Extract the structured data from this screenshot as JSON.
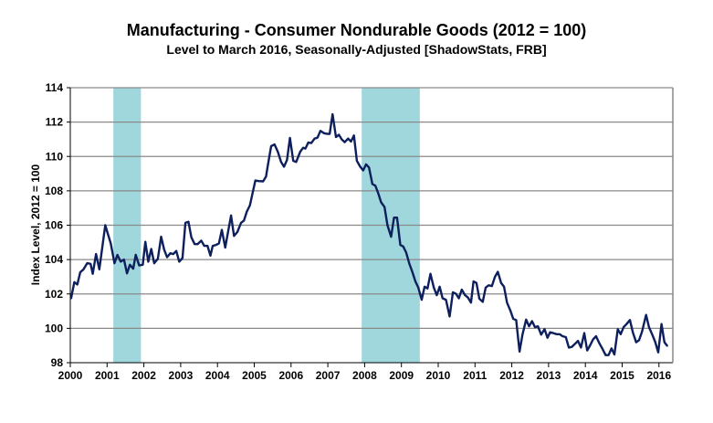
{
  "chart_data": {
    "type": "line",
    "title": "Manufacturing - Consumer Nondurable Goods (2012 = 100)",
    "subtitle": "Level to March 2016, Seasonally-Adjusted [ShadowStats, FRB]",
    "xlabel": "",
    "ylabel": "Index Level, 2012 = 100",
    "xlim": [
      2000,
      2016.38
    ],
    "ylim": [
      98,
      114
    ],
    "x_ticks": [
      "2000",
      "2001",
      "2002",
      "2003",
      "2004",
      "2005",
      "2006",
      "2007",
      "2008",
      "2009",
      "2010",
      "2011",
      "2012",
      "2013",
      "2014",
      "2015",
      "2016"
    ],
    "y_ticks": [
      "98",
      "100",
      "102",
      "104",
      "106",
      "108",
      "110",
      "112",
      "114"
    ],
    "grid": true,
    "legend": "none",
    "colors": {
      "line": "#0d1f5c",
      "recession": "#9fd7dc",
      "grid": "#8a8a8a"
    },
    "recessions": [
      [
        2001.17,
        2001.92
      ],
      [
        2007.92,
        2009.5
      ]
    ],
    "series": [
      {
        "name": "Consumer Nondurable Goods",
        "points": [
          [
            2000.02,
            101.72
          ],
          [
            2000.11,
            102.69
          ],
          [
            2000.19,
            102.55
          ],
          [
            2000.27,
            103.26
          ],
          [
            2000.36,
            103.43
          ],
          [
            2000.46,
            103.79
          ],
          [
            2000.55,
            103.75
          ],
          [
            2000.61,
            103.17
          ],
          [
            2000.7,
            104.32
          ],
          [
            2000.79,
            103.43
          ],
          [
            2000.95,
            106.0
          ],
          [
            2001.1,
            104.94
          ],
          [
            2001.2,
            103.79
          ],
          [
            2001.28,
            104.27
          ],
          [
            2001.37,
            103.88
          ],
          [
            2001.46,
            104.0
          ],
          [
            2001.54,
            103.2
          ],
          [
            2001.62,
            103.7
          ],
          [
            2001.71,
            103.47
          ],
          [
            2001.78,
            104.28
          ],
          [
            2001.87,
            103.66
          ],
          [
            2001.97,
            103.7
          ],
          [
            2002.04,
            105.03
          ],
          [
            2002.12,
            103.88
          ],
          [
            2002.2,
            104.62
          ],
          [
            2002.28,
            103.79
          ],
          [
            2002.38,
            104.05
          ],
          [
            2002.47,
            105.33
          ],
          [
            2002.55,
            104.58
          ],
          [
            2002.63,
            104.14
          ],
          [
            2002.72,
            104.37
          ],
          [
            2002.8,
            104.32
          ],
          [
            2002.88,
            104.5
          ],
          [
            2002.96,
            103.88
          ],
          [
            2003.05,
            104.09
          ],
          [
            2003.13,
            106.14
          ],
          [
            2003.21,
            106.2
          ],
          [
            2003.29,
            105.3
          ],
          [
            2003.38,
            104.9
          ],
          [
            2003.46,
            104.9
          ],
          [
            2003.56,
            105.1
          ],
          [
            2003.64,
            104.8
          ],
          [
            2003.73,
            104.8
          ],
          [
            2003.81,
            104.23
          ],
          [
            2003.87,
            104.8
          ],
          [
            2003.96,
            104.85
          ],
          [
            2004.04,
            104.94
          ],
          [
            2004.12,
            105.73
          ],
          [
            2004.21,
            104.7
          ],
          [
            2004.29,
            105.64
          ],
          [
            2004.37,
            106.57
          ],
          [
            2004.45,
            105.38
          ],
          [
            2004.54,
            105.6
          ],
          [
            2004.64,
            106.14
          ],
          [
            2004.72,
            106.27
          ],
          [
            2004.8,
            106.8
          ],
          [
            2004.88,
            107.15
          ],
          [
            2005.03,
            108.6
          ],
          [
            2005.12,
            108.57
          ],
          [
            2005.24,
            108.55
          ],
          [
            2005.32,
            108.83
          ],
          [
            2005.36,
            109.36
          ],
          [
            2005.46,
            110.6
          ],
          [
            2005.55,
            110.7
          ],
          [
            2005.64,
            110.28
          ],
          [
            2005.73,
            109.68
          ],
          [
            2005.81,
            109.4
          ],
          [
            2005.89,
            109.8
          ],
          [
            2005.97,
            111.08
          ],
          [
            2006.06,
            109.75
          ],
          [
            2006.14,
            109.68
          ],
          [
            2006.25,
            110.28
          ],
          [
            2006.33,
            110.51
          ],
          [
            2006.39,
            110.46
          ],
          [
            2006.47,
            110.81
          ],
          [
            2006.55,
            110.78
          ],
          [
            2006.64,
            111.04
          ],
          [
            2006.72,
            111.1
          ],
          [
            2006.8,
            111.49
          ],
          [
            2006.9,
            111.35
          ],
          [
            2007.0,
            111.31
          ],
          [
            2007.05,
            111.31
          ],
          [
            2007.13,
            112.46
          ],
          [
            2007.22,
            111.13
          ],
          [
            2007.3,
            111.26
          ],
          [
            2007.38,
            110.99
          ],
          [
            2007.46,
            110.83
          ],
          [
            2007.55,
            111.04
          ],
          [
            2007.63,
            110.87
          ],
          [
            2007.71,
            111.22
          ],
          [
            2007.79,
            109.75
          ],
          [
            2007.88,
            109.4
          ],
          [
            2007.96,
            109.19
          ],
          [
            2008.04,
            109.54
          ],
          [
            2008.12,
            109.36
          ],
          [
            2008.21,
            108.39
          ],
          [
            2008.29,
            108.3
          ],
          [
            2008.37,
            107.86
          ],
          [
            2008.45,
            107.33
          ],
          [
            2008.54,
            107.06
          ],
          [
            2008.62,
            106.0
          ],
          [
            2008.72,
            105.33
          ],
          [
            2008.8,
            106.44
          ],
          [
            2008.88,
            106.44
          ],
          [
            2008.97,
            104.85
          ],
          [
            2009.05,
            104.76
          ],
          [
            2009.13,
            104.41
          ],
          [
            2009.21,
            103.79
          ],
          [
            2009.3,
            103.26
          ],
          [
            2009.38,
            102.73
          ],
          [
            2009.46,
            102.37
          ],
          [
            2009.55,
            101.66
          ],
          [
            2009.63,
            102.42
          ],
          [
            2009.71,
            102.32
          ],
          [
            2009.79,
            103.17
          ],
          [
            2009.88,
            102.37
          ],
          [
            2009.96,
            101.93
          ],
          [
            2010.04,
            102.42
          ],
          [
            2010.12,
            101.75
          ],
          [
            2010.21,
            101.66
          ],
          [
            2010.31,
            100.69
          ],
          [
            2010.4,
            102.1
          ],
          [
            2010.48,
            102.02
          ],
          [
            2010.56,
            101.75
          ],
          [
            2010.64,
            102.25
          ],
          [
            2010.73,
            101.93
          ],
          [
            2010.81,
            101.79
          ],
          [
            2010.89,
            101.5
          ],
          [
            2010.96,
            102.73
          ],
          [
            2011.04,
            102.64
          ],
          [
            2011.12,
            101.72
          ],
          [
            2011.21,
            101.54
          ],
          [
            2011.29,
            102.37
          ],
          [
            2011.37,
            102.5
          ],
          [
            2011.46,
            102.46
          ],
          [
            2011.54,
            102.99
          ],
          [
            2011.62,
            103.29
          ],
          [
            2011.71,
            102.64
          ],
          [
            2011.79,
            102.42
          ],
          [
            2011.87,
            101.49
          ],
          [
            2011.96,
            101.04
          ],
          [
            2012.04,
            100.55
          ],
          [
            2012.12,
            100.48
          ],
          [
            2012.21,
            98.65
          ],
          [
            2012.29,
            99.63
          ],
          [
            2012.39,
            100.51
          ],
          [
            2012.47,
            100.12
          ],
          [
            2012.55,
            100.42
          ],
          [
            2012.63,
            100.07
          ],
          [
            2012.71,
            100.12
          ],
          [
            2012.8,
            99.63
          ],
          [
            2012.89,
            99.95
          ],
          [
            2012.97,
            99.45
          ],
          [
            2013.04,
            99.77
          ],
          [
            2013.13,
            99.72
          ],
          [
            2013.22,
            99.66
          ],
          [
            2013.3,
            99.66
          ],
          [
            2013.38,
            99.54
          ],
          [
            2013.47,
            99.49
          ],
          [
            2013.55,
            98.88
          ],
          [
            2013.63,
            98.92
          ],
          [
            2013.72,
            99.1
          ],
          [
            2013.8,
            99.27
          ],
          [
            2013.88,
            98.88
          ],
          [
            2013.97,
            99.72
          ],
          [
            2014.05,
            98.71
          ],
          [
            2014.13,
            99.01
          ],
          [
            2014.21,
            99.36
          ],
          [
            2014.29,
            99.54
          ],
          [
            2014.38,
            99.13
          ],
          [
            2014.46,
            98.83
          ],
          [
            2014.55,
            98.44
          ],
          [
            2014.63,
            98.44
          ],
          [
            2014.71,
            98.83
          ],
          [
            2014.79,
            98.48
          ],
          [
            2014.88,
            99.95
          ],
          [
            2014.96,
            99.66
          ],
          [
            2015.04,
            100.07
          ],
          [
            2015.12,
            100.25
          ],
          [
            2015.21,
            100.48
          ],
          [
            2015.29,
            99.77
          ],
          [
            2015.38,
            99.19
          ],
          [
            2015.46,
            99.31
          ],
          [
            2015.54,
            99.81
          ],
          [
            2015.65,
            100.78
          ],
          [
            2015.73,
            100.07
          ],
          [
            2015.82,
            99.63
          ],
          [
            2015.9,
            99.19
          ],
          [
            2015.98,
            98.6
          ],
          [
            2016.07,
            100.25
          ],
          [
            2016.15,
            99.19
          ],
          [
            2016.23,
            98.96
          ]
        ]
      }
    ]
  }
}
